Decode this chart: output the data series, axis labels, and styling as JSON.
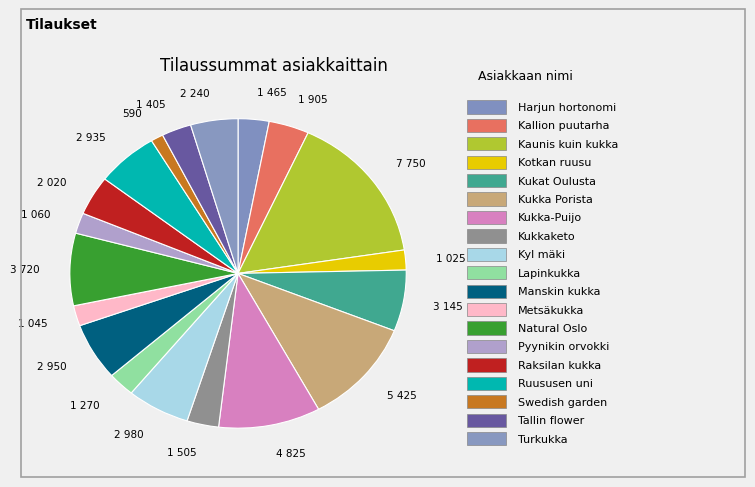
{
  "title": "Tilaussummat asiakkaittain",
  "window_title": "Tilaukset",
  "legend_title": "Asiakkaan nimi",
  "labels": [
    "Harjun hortonomi",
    "Kallion puutarha",
    "Kaunis kuin kukka",
    "Kotkan ruusu",
    "Kukat Oulusta",
    "Kukka Porista",
    "Kukka-Puijo",
    "Kukkaketo",
    "Kyl mäki",
    "Lapinkukka",
    "Manskin kukka",
    "Metsäkukka",
    "Natural Oslo",
    "Pyynikin orvokki",
    "Raksilan kukka",
    "Ruususen uni",
    "Swedish garden",
    "Tallin flower",
    "Turkukka"
  ],
  "values": [
    1465,
    1905,
    7750,
    1025,
    3145,
    5425,
    4825,
    1505,
    2980,
    1270,
    2950,
    1045,
    3720,
    1060,
    2020,
    2935,
    590,
    1405,
    2240
  ],
  "colors": [
    "#8090C0",
    "#E87060",
    "#B0C830",
    "#E8CC00",
    "#40A890",
    "#C8A878",
    "#D880C0",
    "#909090",
    "#A8D8E8",
    "#90E0A0",
    "#006080",
    "#FFB8C8",
    "#38A030",
    "#B0A0CC",
    "#C02020",
    "#00B8B0",
    "#C87820",
    "#6858A0",
    "#8898C0"
  ],
  "label_values_display": [
    "1 465",
    "1 905",
    "7 750",
    "1 025",
    "3 145",
    "5 425",
    "4 825",
    "1 505",
    "2 980",
    "1 270",
    "2 950",
    "1 045",
    "3 720",
    "1 060",
    "2 020",
    "2 935",
    "590",
    "1 405",
    "2 240"
  ],
  "bg_color": "#F0F0F0",
  "panel_bg": "#FFFFFF",
  "titlebar_bg": "#E8E8E8",
  "border_color": "#A0A0A0",
  "label_fontsize": 7.5,
  "legend_fontsize": 8,
  "title_fontsize": 12
}
